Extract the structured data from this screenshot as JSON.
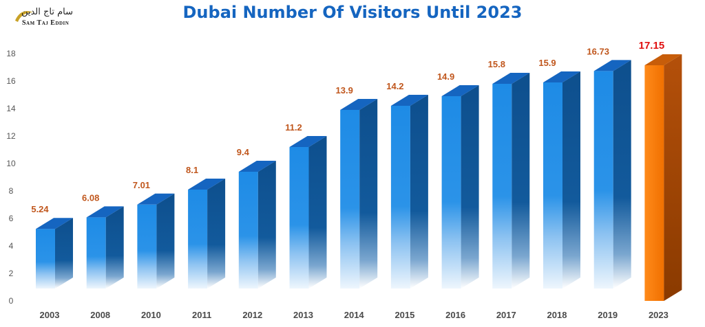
{
  "logo": {
    "arabic": "سام تاج الدين",
    "english": "Sam Taj Eddin"
  },
  "chart_data": {
    "type": "bar",
    "title": "Dubai Number Of Visitors Until 2023",
    "xlabel": "",
    "ylabel": "",
    "ylim": [
      0,
      18
    ],
    "yticks": [
      0,
      2,
      4,
      6,
      8,
      10,
      12,
      14,
      16,
      18
    ],
    "categories": [
      "2003",
      "2008",
      "2010",
      "2011",
      "2012",
      "2013",
      "2014",
      "2015",
      "2016",
      "2017",
      "2018",
      "2019",
      "2023"
    ],
    "values": [
      5.24,
      6.08,
      7.01,
      8.1,
      9.4,
      11.2,
      13.9,
      14.2,
      14.9,
      15.8,
      15.9,
      16.73,
      17.15
    ],
    "value_labels": [
      "5.24",
      "6.08",
      "7.01",
      "8.1",
      "9.4",
      "11.2",
      "13.9",
      "14.2",
      "14.9",
      "15.8",
      "15.9",
      "16.73",
      "17.15"
    ],
    "grid": false,
    "colors": {
      "bar": "#1e88e5",
      "bar_side": "#0d4f8c",
      "bar_top": "#1565c0",
      "highlight": "#ff7f0e",
      "highlight_side": "#b34700",
      "label": "#c0561c",
      "highlight_label": "#e01010",
      "axis_text": "#555555"
    },
    "highlight_category": "2023"
  }
}
